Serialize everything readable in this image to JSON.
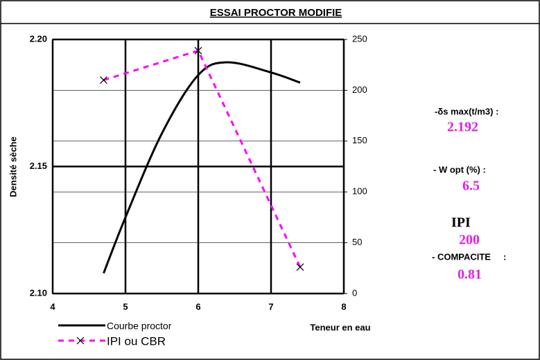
{
  "chart_data": {
    "type": "line",
    "title": "ESSAI PROCTOR MODIFIE",
    "xlabel": "Teneur en eau",
    "ylabel": "Densité sèche",
    "xlim": [
      4,
      8
    ],
    "xticks": [
      4,
      5,
      6,
      7,
      8
    ],
    "ylim": [
      2.1,
      2.2
    ],
    "yticks": [
      {
        "value": 2.1,
        "label": "2.10"
      },
      2.15,
      {
        "value": 2.2,
        "label": "2.20"
      }
    ],
    "y2lim": [
      0,
      250
    ],
    "y2ticks": [
      0,
      50,
      100,
      150,
      200,
      250
    ],
    "grid": true,
    "legend": "bottom-left",
    "series": [
      {
        "name": "Courbe proctor",
        "color": "#000000",
        "x": [
          4.7,
          5,
          5.5,
          6,
          6.4,
          7,
          7.4
        ],
        "values": [
          2.108,
          2.13,
          2.163,
          2.186,
          2.191,
          2.187,
          2.183
        ]
      },
      {
        "name": "IPI ou CBR",
        "color": "#ff00ff",
        "axis": "y2",
        "x": [
          4.7,
          6,
          7.4
        ],
        "values": [
          210,
          239,
          26
        ]
      }
    ]
  },
  "summary": {
    "density_label": "-δs max(t/m3) :",
    "density": "2.192",
    "wopt_label": "- W opt (%)  :",
    "wopt": "6.5",
    "ipi_label": "IPI",
    "ipi": "200",
    "compacite_label": "- COMPACITE     :",
    "compacite": "0.81"
  }
}
